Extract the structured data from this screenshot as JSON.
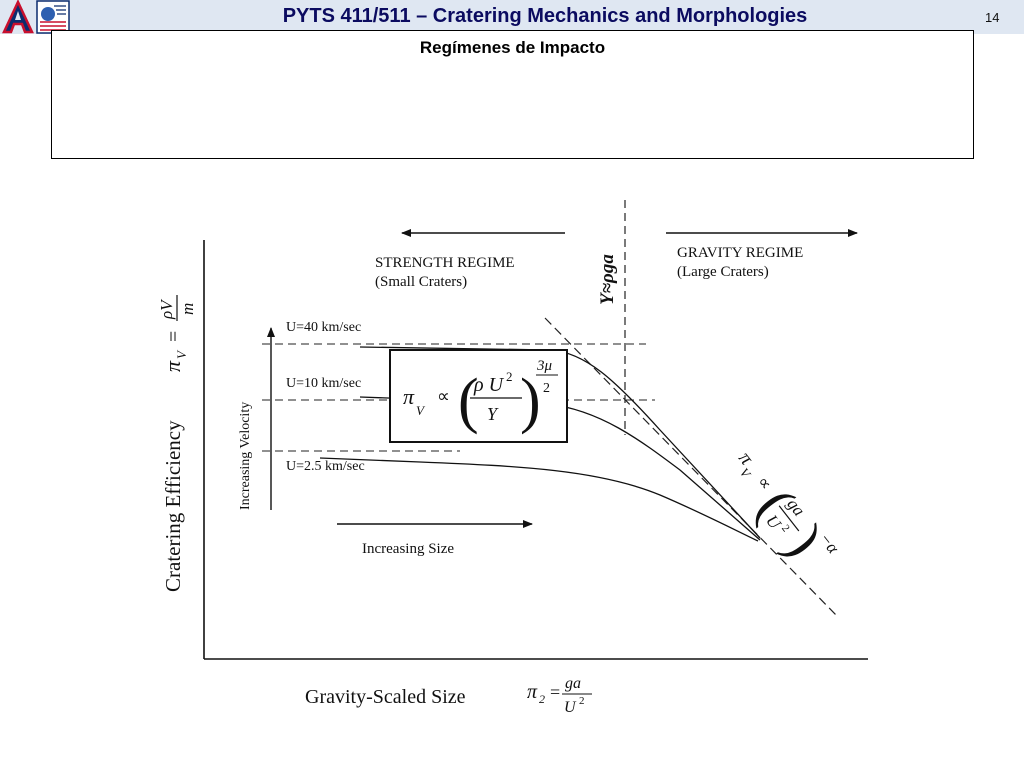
{
  "header": {
    "title": "PYTS 411/511 – Cratering Mechanics and Morphologies",
    "slide_number": "14",
    "logo_letter": "A"
  },
  "subtitle": "Regímenes de Impacto",
  "diagram": {
    "strength_regime": {
      "title": "STRENGTH REGIME",
      "subtitle": "(Small Craters)"
    },
    "gravity_regime": {
      "title": "GRAVITY REGIME",
      "subtitle": "(Large Craters)"
    },
    "transition_label": "Y≈ρga",
    "velocities": [
      "U=40 km/sec",
      "U=10 km/sec",
      "U=2.5 km/sec"
    ],
    "increasing_velocity": "Increasing Velocity",
    "increasing_size": "Increasing Size",
    "y_axis_label": "Cratering Efficiency",
    "x_axis_label": "Gravity-Scaled Size",
    "pi_v_definition": {
      "lhs": "π",
      "lhs_sub": "V",
      "eq": "=",
      "num": "ρV",
      "den": "m"
    },
    "pi_2_definition": {
      "lhs": "π",
      "lhs_sub": "2",
      "eq": "=",
      "num": "ga",
      "den": "U",
      "den_sup": "2"
    },
    "strength_formula": {
      "lhs": "π",
      "lhs_sub": "V",
      "prop": "∝",
      "num": "ρ U",
      "num_sup": "2",
      "den": "Y",
      "exp_num": "3μ",
      "exp_den": "2"
    },
    "gravity_formula": {
      "lhs": "π",
      "lhs_sub": "V",
      "prop": "∝",
      "num": "ga",
      "den": "U",
      "den_sup": "2",
      "exp": "−α"
    }
  }
}
